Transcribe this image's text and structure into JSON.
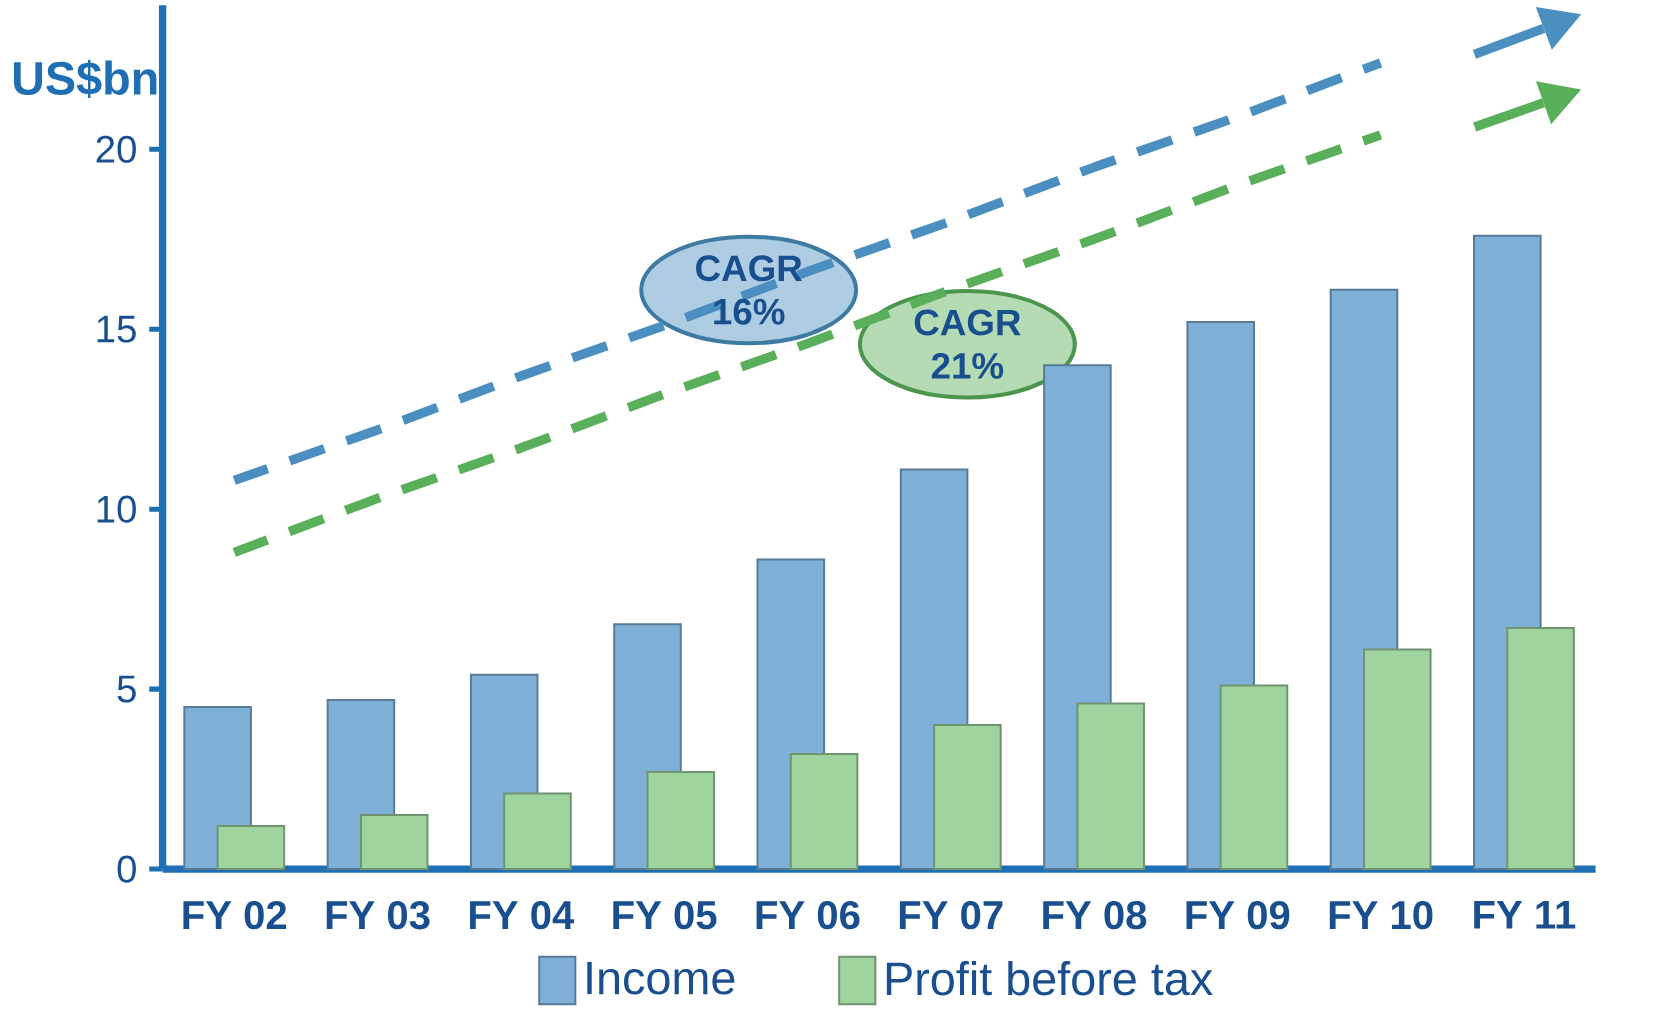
{
  "chart_data": {
    "type": "bar",
    "ylabel": "US$bn",
    "categories": [
      "FY 02",
      "FY 03",
      "FY 04",
      "FY 05",
      "FY 06",
      "FY 07",
      "FY 08",
      "FY 09",
      "FY 10",
      "FY 11"
    ],
    "series": [
      {
        "name": "Income",
        "color": "#7fb0d8",
        "values": [
          4.5,
          4.7,
          5.4,
          6.8,
          8.6,
          11.1,
          14.0,
          15.2,
          16.1,
          17.6
        ]
      },
      {
        "name": "Profit before tax",
        "color": "#9fd49f",
        "values": [
          1.2,
          1.5,
          2.1,
          2.7,
          3.2,
          4.0,
          4.6,
          5.1,
          6.1,
          6.7
        ]
      },
      {
        "type": "line",
        "color": "#4a8fc0",
        "line_style": "dashed",
        "values": [
          10.8,
          12.2,
          13.7,
          15.1,
          16.6,
          18.0,
          19.5,
          20.9,
          22.4,
          null
        ]
      },
      {
        "type": "line",
        "color": "#5aaf5a",
        "line_style": "dashed",
        "values": [
          8.8,
          10.3,
          11.7,
          13.2,
          14.6,
          16.1,
          17.5,
          19.0,
          20.4,
          null
        ]
      }
    ],
    "ylim": [
      0,
      24
    ],
    "yticks": [
      0,
      5,
      10,
      15,
      20
    ],
    "grid": false,
    "legend": "bottom",
    "annotations": [
      "CAGR 16%",
      "CAGR 21%"
    ]
  }
}
